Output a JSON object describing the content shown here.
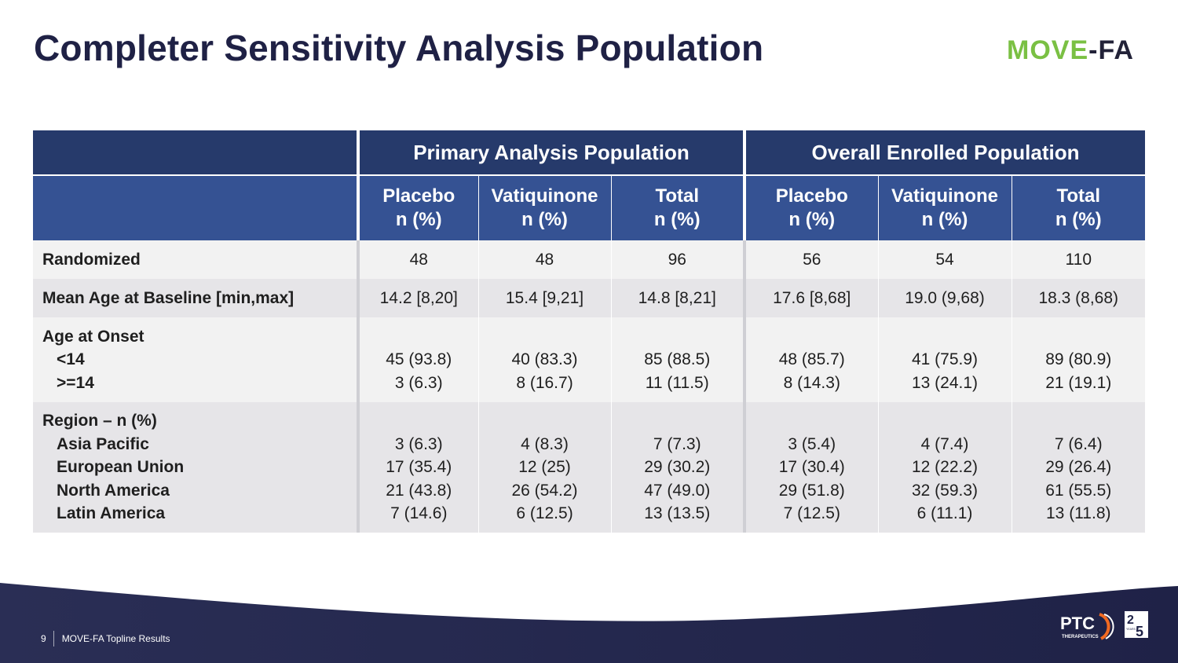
{
  "title": "Completer Sensitivity Analysis Population",
  "logo": {
    "part1": "MOVE",
    "part2": "-FA"
  },
  "table": {
    "group_headers": [
      "Primary Analysis Population",
      "Overall Enrolled Population"
    ],
    "columns": [
      {
        "line1": "Placebo",
        "line2": "n (%)"
      },
      {
        "line1": "Vatiquinone",
        "line2": "n (%)"
      },
      {
        "line1": "Total",
        "line2": "n (%)"
      },
      {
        "line1": "Placebo",
        "line2": "n (%)"
      },
      {
        "line1": "Vatiquinone",
        "line2": "n (%)"
      },
      {
        "line1": "Total",
        "line2": "n (%)"
      }
    ],
    "randomized": {
      "label": "Randomized",
      "values": [
        "48",
        "48",
        "96",
        "56",
        "54",
        "110"
      ]
    },
    "mean_age": {
      "label": "Mean Age at Baseline [min,max]",
      "values": [
        "14.2 [8,20]",
        "15.4 [9,21]",
        "14.8 [8,21]",
        "17.6 [8,68]",
        "19.0 (9,68)",
        "18.3 (8,68)"
      ]
    },
    "age_onset": {
      "label": "Age at Onset",
      "sublabels": [
        "<14",
        ">=14"
      ],
      "values": [
        [
          "45 (93.8)",
          "40 (83.3)",
          "85 (88.5)",
          "48 (85.7)",
          "41 (75.9)",
          "89 (80.9)"
        ],
        [
          "3 (6.3)",
          "8 (16.7)",
          "11 (11.5)",
          "8 (14.3)",
          "13 (24.1)",
          "21 (19.1)"
        ]
      ]
    },
    "region": {
      "label": "Region – n (%)",
      "sublabels": [
        "Asia Pacific",
        "European Union",
        "North America",
        "Latin America"
      ],
      "values": [
        [
          "3 (6.3)",
          "4 (8.3)",
          "7 (7.3)",
          "3 (5.4)",
          "4 (7.4)",
          "7 (6.4)"
        ],
        [
          "17 (35.4)",
          "12 (25)",
          "29 (30.2)",
          "17 (30.4)",
          "12 (22.2)",
          "29 (26.4)"
        ],
        [
          "21 (43.8)",
          "26 (54.2)",
          "47 (49.0)",
          "29 (51.8)",
          "32 (59.3)",
          "61 (55.5)"
        ],
        [
          "7 (14.6)",
          "6 (12.5)",
          "13 (13.5)",
          "7 (12.5)",
          "6 (11.1)",
          "13 (11.8)"
        ]
      ]
    }
  },
  "footer": {
    "page": "9",
    "text": "MOVE-FA Topline Results"
  },
  "brand": {
    "name": "PTC",
    "sub": "THERAPEUTICS",
    "years_a": "2",
    "years_b": "5",
    "years_word": "YEARS"
  }
}
